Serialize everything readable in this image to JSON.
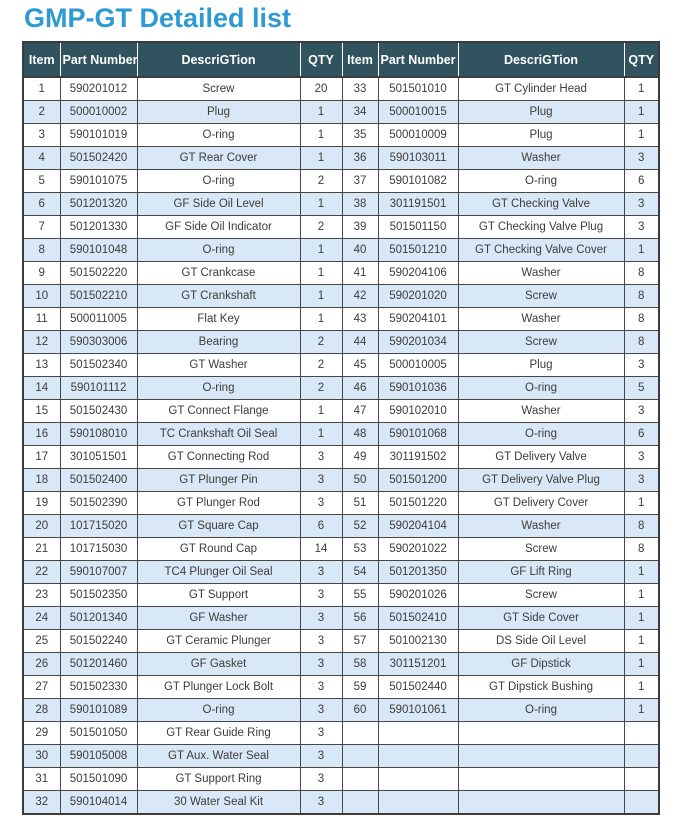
{
  "title": "GMP-GT Detailed list",
  "colors": {
    "title_blue": "#2e9ad3",
    "header_bg": "#315360",
    "stripe_blue": "#d9e8f6",
    "border": "#474747"
  },
  "table": {
    "headers": [
      "Item",
      "Part Number",
      "DescriGTion",
      "QTY",
      "Item",
      "Part Number",
      "DescriGTion",
      "QTY"
    ],
    "rows": [
      [
        "1",
        "590201012",
        "Screw",
        "20",
        "33",
        "501501010",
        "GT Cylinder Head",
        "1"
      ],
      [
        "2",
        "500010002",
        "Plug",
        "1",
        "34",
        "500010015",
        "Plug",
        "1"
      ],
      [
        "3",
        "590101019",
        "O-ring",
        "1",
        "35",
        "500010009",
        "Plug",
        "1"
      ],
      [
        "4",
        "501502420",
        "GT Rear Cover",
        "1",
        "36",
        "590103011",
        "Washer",
        "3"
      ],
      [
        "5",
        "590101075",
        "O-ring",
        "2",
        "37",
        "590101082",
        "O-ring",
        "6"
      ],
      [
        "6",
        "501201320",
        "GF Side Oil Level",
        "1",
        "38",
        "301191501",
        "GT Checking Valve",
        "3"
      ],
      [
        "7",
        "501201330",
        "GF Side Oil Indicator",
        "2",
        "39",
        "501501150",
        "GT Checking Valve Plug",
        "3"
      ],
      [
        "8",
        "590101048",
        "O-ring",
        "1",
        "40",
        "501501210",
        "GT Checking Valve Cover",
        "1"
      ],
      [
        "9",
        "501502220",
        "GT Crankcase",
        "1",
        "41",
        "590204106",
        "Washer",
        "8"
      ],
      [
        "10",
        "501502210",
        "GT Crankshaft",
        "1",
        "42",
        "590201020",
        "Screw",
        "8"
      ],
      [
        "11",
        "500011005",
        "Flat Key",
        "1",
        "43",
        "590204101",
        "Washer",
        "8"
      ],
      [
        "12",
        "590303006",
        "Bearing",
        "2",
        "44",
        "590201034",
        "Screw",
        "8"
      ],
      [
        "13",
        "501502340",
        "GT Washer",
        "2",
        "45",
        "500010005",
        "Plug",
        "3"
      ],
      [
        "14",
        "590101112",
        "O-ring",
        "2",
        "46",
        "590101036",
        "O-ring",
        "5"
      ],
      [
        "15",
        "501502430",
        "GT Connect Flange",
        "1",
        "47",
        "590102010",
        "Washer",
        "3"
      ],
      [
        "16",
        "590108010",
        "TC Crankshaft Oil Seal",
        "1",
        "48",
        "590101068",
        "O-ring",
        "6"
      ],
      [
        "17",
        "301051501",
        "GT Connecting Rod",
        "3",
        "49",
        "301191502",
        "GT Delivery Valve",
        "3"
      ],
      [
        "18",
        "501502400",
        "GT Plunger Pin",
        "3",
        "50",
        "501501200",
        "GT Delivery Valve Plug",
        "3"
      ],
      [
        "19",
        "501502390",
        "GT Plunger Rod",
        "3",
        "51",
        "501501220",
        "GT Delivery Cover",
        "1"
      ],
      [
        "20",
        "101715020",
        "GT Square Cap",
        "6",
        "52",
        "590204104",
        "Washer",
        "8"
      ],
      [
        "21",
        "101715030",
        "GT Round Cap",
        "14",
        "53",
        "590201022",
        "Screw",
        "8"
      ],
      [
        "22",
        "590107007",
        "TC4 Plunger Oil Seal",
        "3",
        "54",
        "501201350",
        "GF Lift Ring",
        "1"
      ],
      [
        "23",
        "501502350",
        "GT Support",
        "3",
        "55",
        "590201026",
        "Screw",
        "1"
      ],
      [
        "24",
        "501201340",
        "GF Washer",
        "3",
        "56",
        "501502410",
        "GT Side Cover",
        "1"
      ],
      [
        "25",
        "501502240",
        "GT Ceramic Plunger",
        "3",
        "57",
        "501002130",
        "DS Side Oil Level",
        "1"
      ],
      [
        "26",
        "501201460",
        "GF Gasket",
        "3",
        "58",
        "301151201",
        "GF Dipstick",
        "1"
      ],
      [
        "27",
        "501502330",
        "GT Plunger Lock Bolt",
        "3",
        "59",
        "501502440",
        "GT Dipstick Bushing",
        "1"
      ],
      [
        "28",
        "590101089",
        "O-ring",
        "3",
        "60",
        "590101061",
        "O-ring",
        "1"
      ],
      [
        "29",
        "501501050",
        "GT Rear Guide Ring",
        "3",
        "",
        "",
        "",
        ""
      ],
      [
        "30",
        "590105008",
        "GT Aux. Water Seal",
        "3",
        "",
        "",
        "",
        ""
      ],
      [
        "31",
        "501501090",
        "GT Support Ring",
        "3",
        "",
        "",
        "",
        ""
      ],
      [
        "32",
        "590104014",
        "30 Water Seal Kit",
        "3",
        "",
        "",
        "",
        ""
      ]
    ]
  }
}
